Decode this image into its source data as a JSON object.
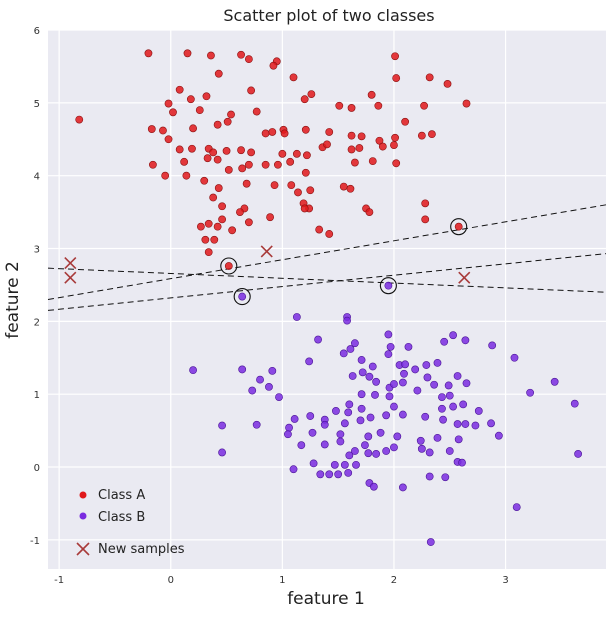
{
  "chart_data": {
    "type": "scatter",
    "title": "Scatter plot of two classes",
    "xlabel": "feature 1",
    "ylabel": "feature 2",
    "xlim": [
      -1.1,
      3.9
    ],
    "ylim": [
      -1.4,
      6.0
    ],
    "xticks": [
      -1,
      0,
      1,
      2,
      3
    ],
    "yticks": [
      -1,
      0,
      1,
      2,
      3,
      4,
      5,
      6
    ],
    "grid": true,
    "legend_position": "lower-left",
    "background": "#eaeaf2",
    "series": [
      {
        "name": "Class A",
        "color": "#e0181b",
        "marker": "circle",
        "points": [
          [
            -0.2,
            5.68
          ],
          [
            0.15,
            5.68
          ],
          [
            0.36,
            5.65
          ],
          [
            0.63,
            5.66
          ],
          [
            0.7,
            5.6
          ],
          [
            0.95,
            5.57
          ],
          [
            0.92,
            5.51
          ],
          [
            2.01,
            5.64
          ],
          [
            2.32,
            5.35
          ],
          [
            2.02,
            5.34
          ],
          [
            2.48,
            5.26
          ],
          [
            2.65,
            4.99
          ],
          [
            2.27,
            4.96
          ],
          [
            0.43,
            5.4
          ],
          [
            1.1,
            5.35
          ],
          [
            0.72,
            5.17
          ],
          [
            0.08,
            5.18
          ],
          [
            -0.02,
            4.99
          ],
          [
            0.18,
            5.05
          ],
          [
            0.32,
            5.09
          ],
          [
            0.02,
            4.87
          ],
          [
            0.26,
            4.9
          ],
          [
            0.54,
            4.84
          ],
          [
            1.26,
            5.12
          ],
          [
            1.2,
            5.05
          ],
          [
            1.51,
            4.96
          ],
          [
            1.62,
            4.93
          ],
          [
            1.8,
            5.11
          ],
          [
            1.86,
            4.96
          ],
          [
            2.1,
            4.74
          ],
          [
            -0.82,
            4.77
          ],
          [
            -0.17,
            4.64
          ],
          [
            -0.07,
            4.62
          ],
          [
            0.2,
            4.65
          ],
          [
            0.42,
            4.7
          ],
          [
            0.51,
            4.74
          ],
          [
            0.77,
            4.88
          ],
          [
            0.85,
            4.58
          ],
          [
            0.91,
            4.6
          ],
          [
            1.01,
            4.63
          ],
          [
            1.02,
            4.58
          ],
          [
            1.21,
            4.63
          ],
          [
            1.42,
            4.6
          ],
          [
            1.62,
            4.55
          ],
          [
            1.71,
            4.54
          ],
          [
            1.87,
            4.48
          ],
          [
            2.01,
            4.52
          ],
          [
            2.25,
            4.55
          ],
          [
            2.34,
            4.57
          ],
          [
            -0.02,
            4.5
          ],
          [
            0.08,
            4.36
          ],
          [
            0.19,
            4.37
          ],
          [
            0.34,
            4.37
          ],
          [
            0.38,
            4.32
          ],
          [
            0.5,
            4.34
          ],
          [
            0.63,
            4.35
          ],
          [
            0.72,
            4.32
          ],
          [
            0.85,
            4.15
          ],
          [
            1.0,
            4.3
          ],
          [
            1.13,
            4.3
          ],
          [
            1.22,
            4.28
          ],
          [
            1.36,
            4.39
          ],
          [
            1.4,
            4.43
          ],
          [
            1.62,
            4.36
          ],
          [
            1.69,
            4.38
          ],
          [
            1.9,
            4.4
          ],
          [
            2.0,
            4.42
          ],
          [
            -0.16,
            4.15
          ],
          [
            0.12,
            4.19
          ],
          [
            0.33,
            4.24
          ],
          [
            0.42,
            4.22
          ],
          [
            0.52,
            4.08
          ],
          [
            0.64,
            4.1
          ],
          [
            0.7,
            4.15
          ],
          [
            0.96,
            4.15
          ],
          [
            1.07,
            4.19
          ],
          [
            1.21,
            4.04
          ],
          [
            1.65,
            4.18
          ],
          [
            1.81,
            4.2
          ],
          [
            2.02,
            4.17
          ],
          [
            -0.05,
            4.0
          ],
          [
            0.14,
            4.0
          ],
          [
            0.3,
            3.93
          ],
          [
            0.43,
            3.83
          ],
          [
            0.68,
            3.89
          ],
          [
            0.93,
            3.87
          ],
          [
            1.08,
            3.87
          ],
          [
            1.25,
            3.8
          ],
          [
            1.55,
            3.85
          ],
          [
            1.61,
            3.82
          ],
          [
            0.38,
            3.7
          ],
          [
            0.46,
            3.58
          ],
          [
            0.66,
            3.55
          ],
          [
            1.14,
            3.77
          ],
          [
            1.19,
            3.62
          ],
          [
            1.24,
            3.55
          ],
          [
            1.75,
            3.55
          ],
          [
            1.78,
            3.5
          ],
          [
            2.28,
            3.62
          ],
          [
            0.62,
            3.5
          ],
          [
            0.34,
            3.34
          ],
          [
            0.46,
            3.4
          ],
          [
            0.7,
            3.36
          ],
          [
            0.89,
            3.43
          ],
          [
            2.28,
            3.4
          ],
          [
            1.33,
            3.26
          ],
          [
            1.42,
            3.2
          ],
          [
            1.2,
            3.55
          ],
          [
            0.42,
            3.3
          ],
          [
            0.27,
            3.3
          ],
          [
            0.31,
            3.12
          ],
          [
            0.39,
            3.12
          ],
          [
            0.55,
            3.25
          ],
          [
            0.34,
            2.95
          ],
          [
            0.52,
            2.76
          ],
          [
            2.58,
            3.3
          ]
        ]
      },
      {
        "name": "Class B",
        "color": "#7a2be0",
        "marker": "circle",
        "points": [
          [
            1.13,
            2.06
          ],
          [
            1.58,
            2.06
          ],
          [
            1.58,
            2.01
          ],
          [
            2.53,
            1.81
          ],
          [
            2.64,
            1.74
          ],
          [
            2.45,
            1.72
          ],
          [
            1.32,
            1.75
          ],
          [
            1.65,
            1.7
          ],
          [
            1.95,
            1.82
          ],
          [
            1.97,
            1.65
          ],
          [
            2.13,
            1.65
          ],
          [
            1.55,
            1.56
          ],
          [
            1.61,
            1.62
          ],
          [
            2.88,
            1.67
          ],
          [
            3.08,
            1.5
          ],
          [
            1.95,
            1.55
          ],
          [
            2.29,
            1.4
          ],
          [
            2.39,
            1.43
          ],
          [
            2.05,
            1.4
          ],
          [
            2.1,
            1.41
          ],
          [
            2.19,
            1.34
          ],
          [
            1.24,
            1.45
          ],
          [
            1.71,
            1.47
          ],
          [
            1.81,
            1.38
          ],
          [
            0.2,
            1.33
          ],
          [
            0.64,
            1.34
          ],
          [
            0.8,
            1.2
          ],
          [
            0.91,
            1.32
          ],
          [
            1.72,
            1.3
          ],
          [
            1.63,
            1.25
          ],
          [
            1.78,
            1.24
          ],
          [
            2.09,
            1.28
          ],
          [
            2.08,
            1.16
          ],
          [
            2.3,
            1.23
          ],
          [
            2.36,
            1.13
          ],
          [
            2.49,
            1.12
          ],
          [
            2.57,
            1.25
          ],
          [
            2.65,
            1.15
          ],
          [
            3.44,
            1.17
          ],
          [
            1.84,
            1.17
          ],
          [
            1.96,
            1.09
          ],
          [
            2.0,
            1.14
          ],
          [
            0.73,
            1.05
          ],
          [
            0.88,
            1.1
          ],
          [
            0.97,
            0.96
          ],
          [
            1.71,
            1.0
          ],
          [
            1.83,
            0.99
          ],
          [
            1.96,
            0.97
          ],
          [
            2.21,
            1.05
          ],
          [
            2.43,
            0.96
          ],
          [
            2.5,
            0.98
          ],
          [
            2.53,
            0.83
          ],
          [
            2.62,
            0.86
          ],
          [
            3.22,
            1.02
          ],
          [
            1.71,
            0.8
          ],
          [
            2.0,
            0.83
          ],
          [
            1.6,
            0.86
          ],
          [
            1.11,
            0.66
          ],
          [
            1.25,
            0.7
          ],
          [
            1.38,
            0.65
          ],
          [
            1.48,
            0.77
          ],
          [
            1.59,
            0.75
          ],
          [
            1.7,
            0.64
          ],
          [
            1.79,
            0.68
          ],
          [
            1.93,
            0.71
          ],
          [
            2.08,
            0.72
          ],
          [
            2.28,
            0.69
          ],
          [
            2.43,
            0.8
          ],
          [
            2.44,
            0.65
          ],
          [
            2.57,
            0.59
          ],
          [
            2.64,
            0.59
          ],
          [
            2.73,
            0.57
          ],
          [
            2.87,
            0.6
          ],
          [
            2.76,
            0.77
          ],
          [
            1.38,
            0.58
          ],
          [
            1.56,
            0.6
          ],
          [
            0.46,
            0.57
          ],
          [
            0.77,
            0.58
          ],
          [
            1.06,
            0.54
          ],
          [
            1.27,
            0.47
          ],
          [
            1.52,
            0.45
          ],
          [
            1.77,
            0.42
          ],
          [
            1.88,
            0.47
          ],
          [
            2.03,
            0.42
          ],
          [
            2.24,
            0.36
          ],
          [
            2.39,
            0.4
          ],
          [
            2.58,
            0.38
          ],
          [
            2.94,
            0.43
          ],
          [
            3.62,
            0.87
          ],
          [
            1.65,
            0.22
          ],
          [
            1.17,
            0.3
          ],
          [
            1.38,
            0.31
          ],
          [
            1.52,
            0.35
          ],
          [
            1.74,
            0.3
          ],
          [
            2.0,
            0.27
          ],
          [
            2.25,
            0.25
          ],
          [
            2.32,
            0.2
          ],
          [
            2.5,
            0.22
          ],
          [
            1.84,
            0.18
          ],
          [
            1.93,
            0.22
          ],
          [
            1.05,
            0.45
          ],
          [
            0.46,
            0.2
          ],
          [
            1.6,
            0.16
          ],
          [
            1.77,
            0.19
          ],
          [
            2.57,
            0.07
          ],
          [
            2.61,
            0.06
          ],
          [
            3.65,
            0.18
          ],
          [
            1.47,
            0.03
          ],
          [
            1.56,
            0.03
          ],
          [
            1.66,
            0.03
          ],
          [
            1.28,
            0.05
          ],
          [
            1.5,
            -0.1
          ],
          [
            1.1,
            -0.03
          ],
          [
            1.34,
            -0.1
          ],
          [
            1.42,
            -0.1
          ],
          [
            1.59,
            -0.08
          ],
          [
            2.32,
            -0.13
          ],
          [
            2.46,
            -0.14
          ],
          [
            1.78,
            -0.22
          ],
          [
            1.82,
            -0.27
          ],
          [
            2.08,
            -0.28
          ],
          [
            3.1,
            -0.55
          ],
          [
            2.33,
            -1.03
          ],
          [
            0.64,
            2.34
          ],
          [
            1.95,
            2.49
          ]
        ]
      },
      {
        "name": "New samples",
        "color": "#a83a3a",
        "marker": "x",
        "points": [
          [
            -0.9,
            2.8
          ],
          [
            -0.9,
            2.6
          ],
          [
            0.86,
            2.96
          ],
          [
            2.63,
            2.6
          ]
        ]
      }
    ],
    "circled_points": [
      [
        0.52,
        2.76
      ],
      [
        0.64,
        2.34
      ],
      [
        1.95,
        2.49
      ],
      [
        2.58,
        3.3
      ]
    ],
    "lines": [
      {
        "x": [
          -1.1,
          3.9
        ],
        "y": [
          2.3,
          3.6
        ],
        "style": "dashed"
      },
      {
        "x": [
          -1.1,
          3.9
        ],
        "y": [
          2.15,
          2.93
        ],
        "style": "dashed"
      },
      {
        "x": [
          -1.1,
          3.9
        ],
        "y": [
          2.73,
          2.4
        ],
        "style": "dashed"
      }
    ]
  }
}
